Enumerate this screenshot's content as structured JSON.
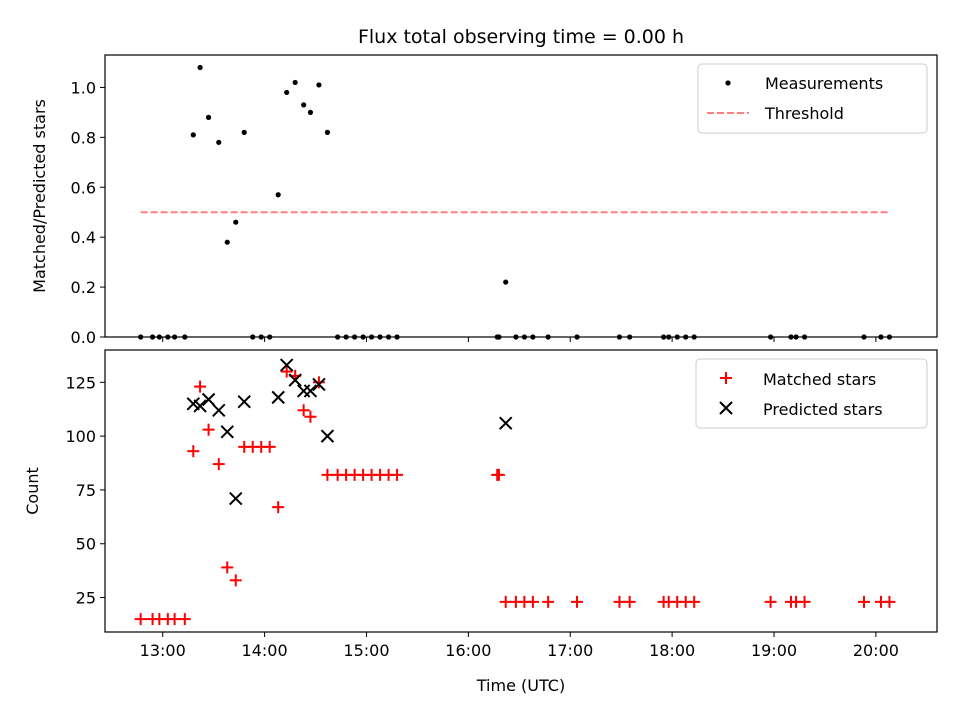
{
  "chart_data": [
    {
      "type": "scatter",
      "title": "Flux total observing time = 0.00 h",
      "xlabel": "",
      "ylabel": "Matched/Predicted stars",
      "xlim": [
        "12:26",
        "20:36"
      ],
      "ylim": [
        0,
        1.13
      ],
      "yticks": [
        0.0,
        0.2,
        0.4,
        0.6,
        0.8,
        1.0
      ],
      "ytick_labels": [
        "0.0",
        "0.2",
        "0.4",
        "0.6",
        "0.8",
        "1.0"
      ],
      "xticks": [
        "13:00",
        "14:00",
        "15:00",
        "16:00",
        "17:00",
        "18:00",
        "19:00",
        "20:00"
      ],
      "legend_position": "upper right",
      "grid": false,
      "series": [
        {
          "name": "Measurements",
          "kind": "scatter",
          "marker": "dot",
          "color": "#000000",
          "points": [
            [
              "12:47",
              0
            ],
            [
              "12:54",
              0
            ],
            [
              "12:58",
              0
            ],
            [
              "13:03",
              0
            ],
            [
              "13:07",
              0
            ],
            [
              "13:13",
              0
            ],
            [
              "13:18",
              0.81
            ],
            [
              "13:22",
              1.08
            ],
            [
              "13:27",
              0.88
            ],
            [
              "13:33",
              0.78
            ],
            [
              "13:38",
              0.38
            ],
            [
              "13:43",
              0.46
            ],
            [
              "13:48",
              0.82
            ],
            [
              "13:53",
              0
            ],
            [
              "13:58",
              0
            ],
            [
              "14:03",
              0
            ],
            [
              "14:08",
              0.57
            ],
            [
              "14:13",
              0.98
            ],
            [
              "14:18",
              1.02
            ],
            [
              "14:23",
              0.93
            ],
            [
              "14:27",
              0.9
            ],
            [
              "14:32",
              1.01
            ],
            [
              "14:37",
              0.82
            ],
            [
              "14:43",
              0
            ],
            [
              "14:48",
              0
            ],
            [
              "14:53",
              0
            ],
            [
              "14:58",
              0
            ],
            [
              "15:03",
              0
            ],
            [
              "15:08",
              0
            ],
            [
              "15:13",
              0
            ],
            [
              "15:18",
              0
            ],
            [
              "16:17",
              0
            ],
            [
              "16:18",
              0
            ],
            [
              "16:22",
              0.22
            ],
            [
              "16:28",
              0
            ],
            [
              "16:33",
              0
            ],
            [
              "16:38",
              0
            ],
            [
              "16:47",
              0
            ],
            [
              "17:04",
              0
            ],
            [
              "17:29",
              0
            ],
            [
              "17:35",
              0
            ],
            [
              "17:55",
              0
            ],
            [
              "17:58",
              0
            ],
            [
              "18:03",
              0
            ],
            [
              "18:08",
              0
            ],
            [
              "18:13",
              0
            ],
            [
              "18:58",
              0
            ],
            [
              "19:10",
              0
            ],
            [
              "19:13",
              0
            ],
            [
              "19:18",
              0
            ],
            [
              "19:53",
              0
            ],
            [
              "20:03",
              0
            ],
            [
              "20:08",
              0
            ]
          ]
        },
        {
          "name": "Threshold",
          "kind": "dashed-line",
          "color": "#ff7f7f",
          "points": [
            [
              "12:47",
              0.5
            ],
            [
              "20:08",
              0.5
            ]
          ]
        }
      ]
    },
    {
      "type": "scatter",
      "title": "",
      "xlabel": "Time (UTC)",
      "ylabel": "Count",
      "xlim": [
        "12:26",
        "20:36"
      ],
      "ylim": [
        9,
        140
      ],
      "yticks": [
        25,
        50,
        75,
        100,
        125
      ],
      "ytick_labels": [
        "25",
        "50",
        "75",
        "100",
        "125"
      ],
      "xticks": [
        "13:00",
        "14:00",
        "15:00",
        "16:00",
        "17:00",
        "18:00",
        "19:00",
        "20:00"
      ],
      "xtick_labels": [
        "13:00",
        "14:00",
        "15:00",
        "16:00",
        "17:00",
        "18:00",
        "19:00",
        "20:00"
      ],
      "legend_position": "upper right",
      "grid": false,
      "series": [
        {
          "name": "Matched stars",
          "kind": "scatter",
          "marker": "plus",
          "color": "#ff0000",
          "points": [
            [
              "12:47",
              15
            ],
            [
              "12:54",
              15
            ],
            [
              "12:58",
              15
            ],
            [
              "13:03",
              15
            ],
            [
              "13:07",
              15
            ],
            [
              "13:13",
              15
            ],
            [
              "13:18",
              93
            ],
            [
              "13:22",
              123
            ],
            [
              "13:27",
              103
            ],
            [
              "13:33",
              87
            ],
            [
              "13:38",
              39
            ],
            [
              "13:43",
              33
            ],
            [
              "13:48",
              95
            ],
            [
              "13:53",
              95
            ],
            [
              "13:58",
              95
            ],
            [
              "14:03",
              95
            ],
            [
              "14:08",
              67
            ],
            [
              "14:13",
              130
            ],
            [
              "14:18",
              128
            ],
            [
              "14:23",
              112
            ],
            [
              "14:27",
              109
            ],
            [
              "14:32",
              125
            ],
            [
              "14:37",
              82
            ],
            [
              "14:43",
              82
            ],
            [
              "14:48",
              82
            ],
            [
              "14:53",
              82
            ],
            [
              "14:58",
              82
            ],
            [
              "15:03",
              82
            ],
            [
              "15:08",
              82
            ],
            [
              "15:13",
              82
            ],
            [
              "15:18",
              82
            ],
            [
              "16:17",
              82
            ],
            [
              "16:18",
              82
            ],
            [
              "16:22",
              23
            ],
            [
              "16:28",
              23
            ],
            [
              "16:33",
              23
            ],
            [
              "16:38",
              23
            ],
            [
              "16:47",
              23
            ],
            [
              "17:04",
              23
            ],
            [
              "17:29",
              23
            ],
            [
              "17:35",
              23
            ],
            [
              "17:55",
              23
            ],
            [
              "17:58",
              23
            ],
            [
              "18:03",
              23
            ],
            [
              "18:08",
              23
            ],
            [
              "18:13",
              23
            ],
            [
              "18:58",
              23
            ],
            [
              "19:10",
              23
            ],
            [
              "19:13",
              23
            ],
            [
              "19:18",
              23
            ],
            [
              "19:53",
              23
            ],
            [
              "20:03",
              23
            ],
            [
              "20:08",
              23
            ]
          ]
        },
        {
          "name": "Predicted stars",
          "kind": "scatter",
          "marker": "x",
          "color": "#000000",
          "points": [
            [
              "13:18",
              115
            ],
            [
              "13:22",
              114
            ],
            [
              "13:27",
              117
            ],
            [
              "13:33",
              112
            ],
            [
              "13:38",
              102
            ],
            [
              "13:43",
              71
            ],
            [
              "13:48",
              116
            ],
            [
              "14:08",
              118
            ],
            [
              "14:13",
              133
            ],
            [
              "14:18",
              126
            ],
            [
              "14:23",
              121
            ],
            [
              "14:27",
              121
            ],
            [
              "14:32",
              124
            ],
            [
              "14:37",
              100
            ],
            [
              "16:22",
              106
            ]
          ]
        }
      ]
    }
  ]
}
